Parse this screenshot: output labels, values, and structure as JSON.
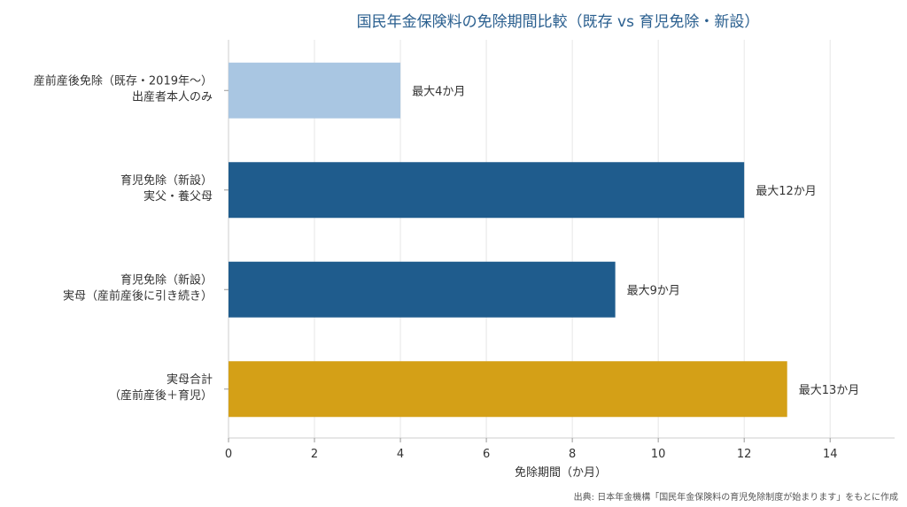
{
  "chart_data": {
    "type": "bar",
    "orientation": "horizontal",
    "title": "国民年金保険料の免除期間比較（既存 vs 育児免除・新設）",
    "xlabel": "免除期間（か月）",
    "ylabel": "",
    "xlim": [
      0,
      15.5
    ],
    "xticks": [
      0,
      2,
      4,
      6,
      8,
      10,
      12,
      14
    ],
    "grid": "vertical",
    "categories": [
      [
        "産前産後免除（既存・2019年〜）",
        "出産者本人のみ"
      ],
      [
        "育児免除（新設）",
        "実父・養父母"
      ],
      [
        "育児免除（新設）",
        "実母（産前産後に引き続き）"
      ],
      [
        "実母合計",
        "（産前産後＋育児）"
      ]
    ],
    "values": [
      4,
      12,
      9,
      13
    ],
    "data_labels": [
      "最大4か月",
      "最大12か月",
      "最大9か月",
      "最大13か月"
    ],
    "colors": [
      "#a9c6e2",
      "#1f5c8d",
      "#1f5c8d",
      "#d4a017"
    ]
  },
  "source": "出典: 日本年金機構「国民年金保険料の育児免除制度が始まります」をもとに作成"
}
